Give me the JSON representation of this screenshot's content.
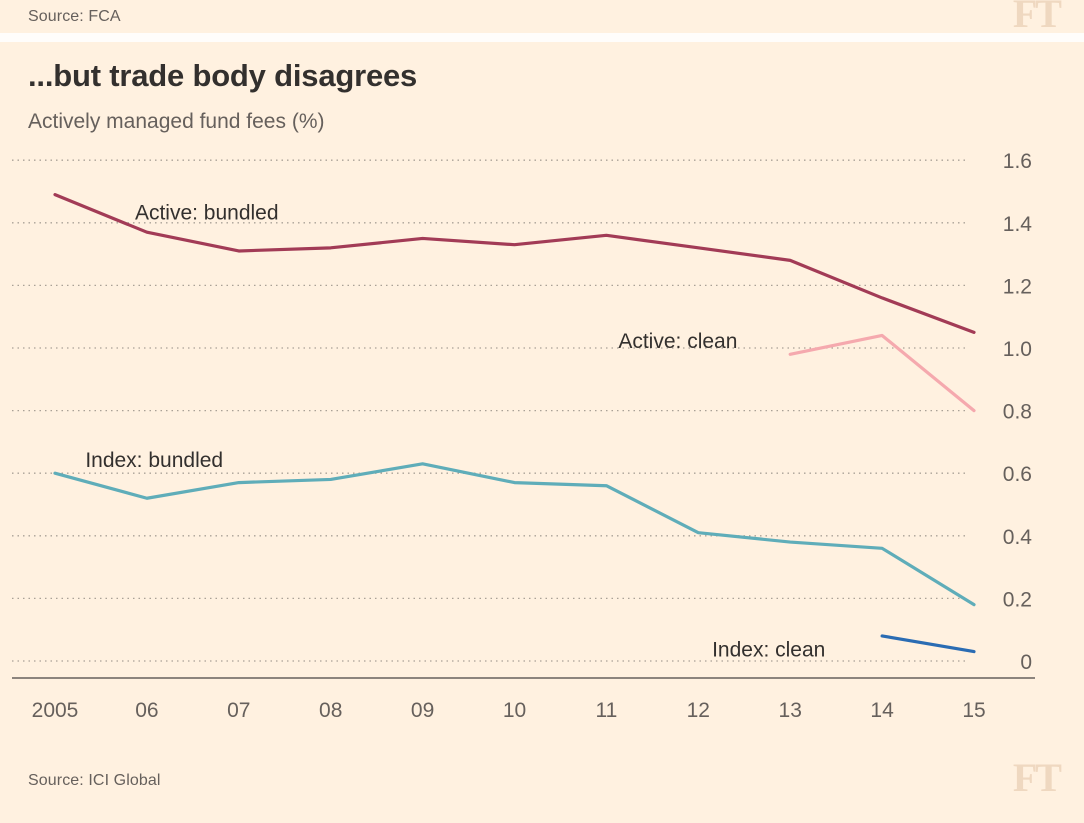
{
  "colors": {
    "background": "#FFF1E0",
    "text_dark": "#33302E",
    "text_muted": "#66605C",
    "gridline": "#A9A196",
    "axis": "#66605C",
    "ft_logo": "#EFD8C0"
  },
  "top_bar": {
    "source": "Source: FCA",
    "logo": "FT"
  },
  "header": {
    "title": "...but trade body disagrees",
    "subtitle": "Actively managed fund fees (%)"
  },
  "footer": {
    "source": "Source: ICI Global",
    "logo": "FT"
  },
  "chart_data": {
    "type": "line",
    "title": "...but trade body disagrees",
    "subtitle": "Actively managed fund fees (%)",
    "x_tick_labels": [
      "2005",
      "06",
      "07",
      "08",
      "09",
      "10",
      "11",
      "12",
      "13",
      "14",
      "15"
    ],
    "ylim": [
      0,
      1.6
    ],
    "yticks": [
      0,
      0.2,
      0.4,
      0.6,
      0.8,
      1.0,
      1.2,
      1.4,
      1.6
    ],
    "ytick_labels": [
      "0",
      "0.2",
      "0.4",
      "0.6",
      "0.8",
      "1.0",
      "1.2",
      "1.4",
      "1.6"
    ],
    "grid": "horizontal-dotted",
    "legend": "inline-labels",
    "series": [
      {
        "name": "Active: bundled",
        "color": "#A23B56",
        "values": [
          1.49,
          1.37,
          1.31,
          1.32,
          1.35,
          1.33,
          1.36,
          1.32,
          1.28,
          1.16,
          1.05
        ]
      },
      {
        "name": "Active: clean",
        "color": "#F5A9AE",
        "values": [
          null,
          null,
          null,
          null,
          null,
          null,
          null,
          null,
          0.98,
          1.04,
          0.8
        ]
      },
      {
        "name": "Index: bundled",
        "color": "#5FADB9",
        "values": [
          0.6,
          0.52,
          0.57,
          0.58,
          0.63,
          0.57,
          0.56,
          0.41,
          0.38,
          0.36,
          0.18
        ]
      },
      {
        "name": "Index: clean",
        "color": "#2A6CB3",
        "values": [
          null,
          null,
          null,
          null,
          null,
          null,
          null,
          null,
          null,
          0.08,
          0.03
        ]
      }
    ],
    "labels": [
      {
        "text": "Active: bundled",
        "xi": 0.87,
        "v": 1.41
      },
      {
        "text": "Active: clean",
        "xi": 6.13,
        "v": 1.0
      },
      {
        "text": "Index: bundled",
        "xi": 0.33,
        "v": 0.62
      },
      {
        "text": "Index: clean",
        "xi": 7.15,
        "v": 0.015
      }
    ]
  }
}
